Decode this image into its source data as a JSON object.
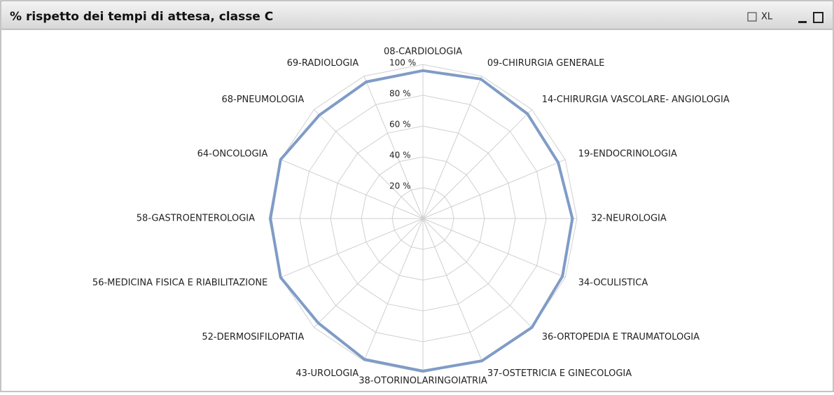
{
  "toolbar": {
    "xl": "XL"
  },
  "chart_data": {
    "type": "radar",
    "title": "% rispetto dei tempi di attesa, classe C",
    "categories": [
      "08-CARDIOLOGIA",
      "09-CHIRURGIA GENERALE",
      "14-CHIRURGIA VASCOLARE- ANGIOLOGIA",
      "19-ENDOCRINOLOGIA",
      "32-NEUROLOGIA",
      "34-OCULISTICA",
      "36-ORTOPEDIA E TRAUMATOLOGIA",
      "37-OSTETRICIA E GINECOLOGIA",
      "38-OTORINOLARINGOIATRIA",
      "43-UROLOGIA",
      "52-DERMOSIFILOPATIA",
      "56-MEDICINA FISICA E RIABILITAZIONE",
      "58-GASTROENTEROLOGIA",
      "64-ONCOLOGIA",
      "68-PNEUMOLOGIA",
      "69-RADIOLOGIA"
    ],
    "values": [
      96,
      98,
      96,
      95,
      97,
      98,
      100,
      100,
      99,
      99,
      96,
      100,
      99,
      100,
      95,
      96
    ],
    "color": "#7f9cc6",
    "ylim": [
      0,
      100
    ],
    "yticks": [
      {
        "value": 20,
        "label": "20 %"
      },
      {
        "value": 40,
        "label": "40 %"
      },
      {
        "value": 60,
        "label": "60 %"
      },
      {
        "value": 80,
        "label": "80 %"
      },
      {
        "value": 100,
        "label": "100 %"
      }
    ],
    "grid": true
  }
}
